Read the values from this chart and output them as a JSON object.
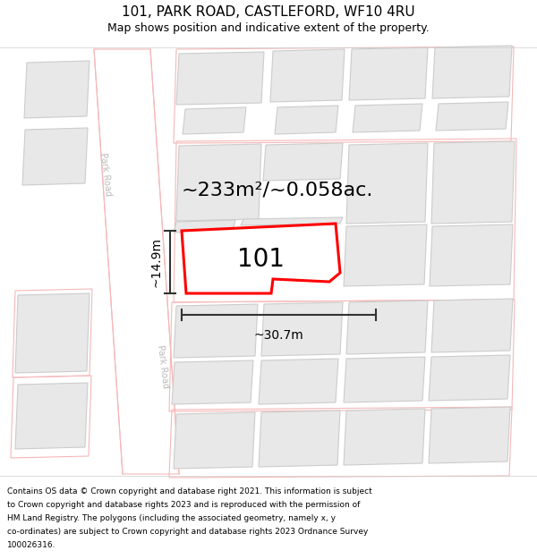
{
  "title": "101, PARK ROAD, CASTLEFORD, WF10 4RU",
  "subtitle": "Map shows position and indicative extent of the property.",
  "footer_lines": [
    "Contains OS data © Crown copyright and database right 2021. This information is subject",
    "to Crown copyright and database rights 2023 and is reproduced with the permission of",
    "HM Land Registry. The polygons (including the associated geometry, namely x, y",
    "co-ordinates) are subject to Crown copyright and database rights 2023 Ordnance Survey",
    "100026316."
  ],
  "area_label": "~233m²/~0.058ac.",
  "width_label": "~30.7m",
  "height_label": "~14.9m",
  "number_label": "101",
  "bg_color": "#ffffff",
  "building_fill": "#e8e8e8",
  "building_edge": "#cccccc",
  "highlight_fill": "#ffffff",
  "highlight_edge": "#ff0000",
  "road_outline_color": "#f5b8b8",
  "road_label_color": "#bbbbbb",
  "dim_line_color": "#333333",
  "separator_color": "#cccccc"
}
